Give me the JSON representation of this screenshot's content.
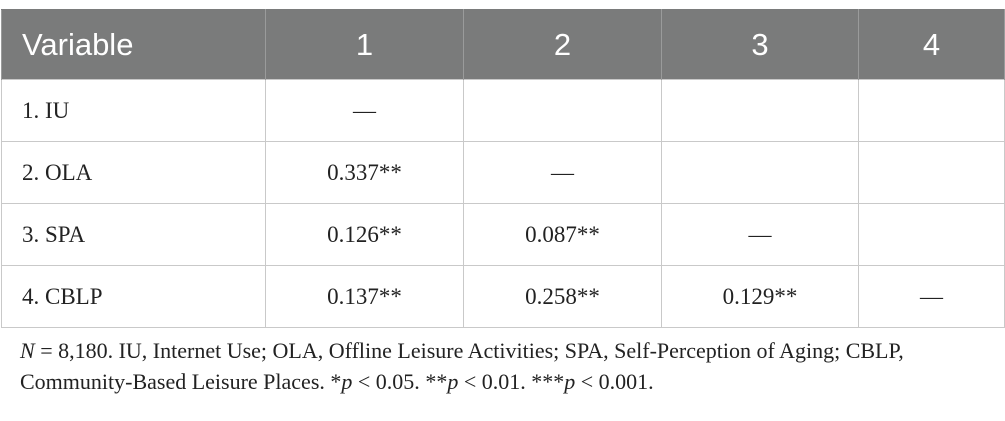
{
  "table": {
    "headers": [
      "Variable",
      "1",
      "2",
      "3",
      "4"
    ],
    "rows": [
      {
        "label": "1. IU",
        "cells": [
          "—",
          "",
          "",
          ""
        ]
      },
      {
        "label": "2. OLA",
        "cells": [
          "0.337**",
          "—",
          "",
          ""
        ]
      },
      {
        "label": "3. SPA",
        "cells": [
          "0.126**",
          "0.087**",
          "—",
          ""
        ]
      },
      {
        "label": "4. CBLP",
        "cells": [
          "0.137**",
          "0.258**",
          "0.129**",
          "—"
        ]
      }
    ]
  },
  "note": {
    "n_symbol": "N",
    "n_text": " = 8,180. IU, Internet Use; OLA, Offline Leisure Activities; SPA, Self-Perception of Aging; CBLP, Community-Based Leisure Places. ",
    "p1_stars": "*",
    "p1_rest": " < 0.05. ",
    "p2_stars": "**",
    "p2_rest": " < 0.01. ",
    "p3_stars": "***",
    "p3_rest": " < 0.001.",
    "p_symbol": "p"
  }
}
